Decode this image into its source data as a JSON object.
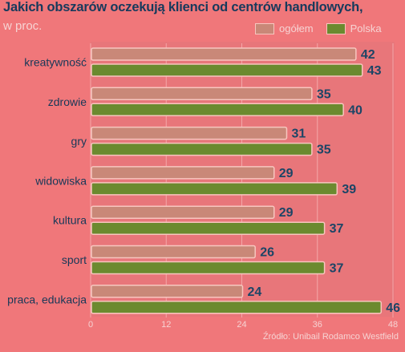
{
  "title": "Jakich obszarów oczekują klienci od centrów handlowych,",
  "subtitle": "w proc.",
  "source": "Źródło: Unibail Rodamco Westfield",
  "colors": {
    "ogolem_fill": "#c98878",
    "ogolem_stroke": "#f8c6bf",
    "polska_fill": "#6b8a2f",
    "polska_stroke": "#f8c6bf",
    "value_label": "#1c4566",
    "category_label": "#173858",
    "tick_label": "#f6d3d3",
    "grid": "#f4a7a8"
  },
  "chart_data": {
    "type": "bar",
    "orientation": "horizontal",
    "categories": [
      "kreatywność",
      "zdrowie",
      "gry",
      "widowiska",
      "kultura",
      "sport",
      "praca, edukacja"
    ],
    "series": [
      {
        "name": "ogółem",
        "values": [
          42,
          35,
          31,
          29,
          29,
          26,
          24
        ]
      },
      {
        "name": "Polska",
        "values": [
          43,
          40,
          35,
          39,
          37,
          37,
          46
        ]
      }
    ],
    "xlim": [
      0,
      48
    ],
    "xticks": [
      0,
      12,
      24,
      36,
      48
    ],
    "grid": true,
    "legend_position": "top-right"
  }
}
